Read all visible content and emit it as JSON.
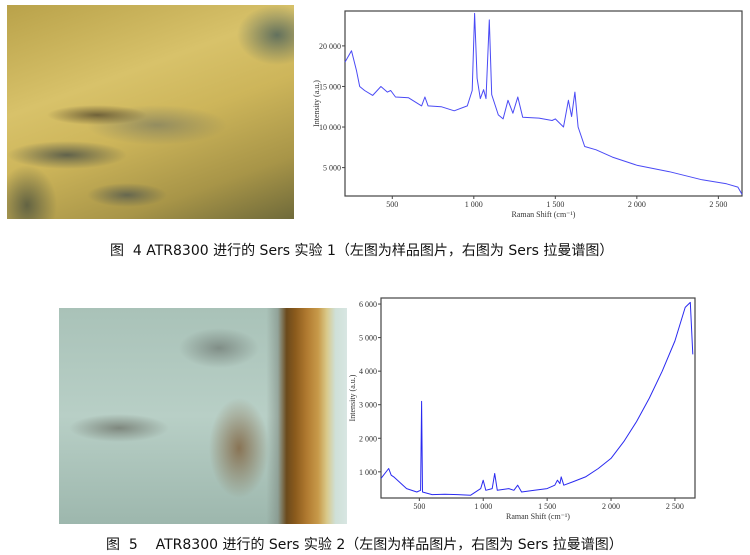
{
  "figures": [
    {
      "caption": "图  4 ATR8300 进行的 Sers 实验 1（左图为样品图片，右图为 Sers 拉曼谱图）",
      "image": "sample micrograph, yellow with dark streaks"
    },
    {
      "caption": "图  5    ATR8300 进行的 Sers 实验 2（左图为样品图片，右图为 Sers 拉曼谱图）",
      "image": "sample micrograph, pale blue-green with brown edge"
    }
  ],
  "chart_data": [
    {
      "type": "line",
      "xlabel": "Raman Shift (cm⁻¹)",
      "ylabel": "Intensity (a.u.)",
      "xlim": [
        210,
        2645
      ],
      "ylim": [
        1500,
        24300
      ],
      "xticks": [
        500,
        1000,
        1500,
        2000,
        2500
      ],
      "xtick_labels": [
        "500",
        "1 000",
        "1 500",
        "2 000",
        "2 500"
      ],
      "yticks": [
        5000,
        10000,
        15000,
        20000
      ],
      "ytick_labels": [
        "5 000",
        "10 000",
        "15 000",
        "20 000"
      ],
      "grid": false,
      "color": "#4a4af5",
      "points": [
        [
          210,
          18000
        ],
        [
          250,
          19400
        ],
        [
          280,
          17000
        ],
        [
          300,
          15000
        ],
        [
          330,
          14500
        ],
        [
          380,
          13900
        ],
        [
          430,
          15000
        ],
        [
          470,
          14300
        ],
        [
          490,
          14500
        ],
        [
          520,
          13700
        ],
        [
          600,
          13600
        ],
        [
          680,
          12600
        ],
        [
          700,
          13700
        ],
        [
          720,
          12600
        ],
        [
          800,
          12500
        ],
        [
          880,
          12000
        ],
        [
          960,
          12600
        ],
        [
          990,
          14500
        ],
        [
          1005,
          24000
        ],
        [
          1020,
          16000
        ],
        [
          1040,
          13500
        ],
        [
          1060,
          14600
        ],
        [
          1075,
          13500
        ],
        [
          1095,
          23200
        ],
        [
          1110,
          14000
        ],
        [
          1150,
          11500
        ],
        [
          1180,
          11000
        ],
        [
          1210,
          13300
        ],
        [
          1240,
          11700
        ],
        [
          1270,
          13700
        ],
        [
          1300,
          11200
        ],
        [
          1400,
          11100
        ],
        [
          1480,
          10800
        ],
        [
          1500,
          11000
        ],
        [
          1550,
          10000
        ],
        [
          1580,
          13300
        ],
        [
          1600,
          11300
        ],
        [
          1620,
          14300
        ],
        [
          1640,
          10000
        ],
        [
          1680,
          7600
        ],
        [
          1750,
          7200
        ],
        [
          1850,
          6300
        ],
        [
          2000,
          5300
        ],
        [
          2200,
          4500
        ],
        [
          2400,
          3500
        ],
        [
          2550,
          3000
        ],
        [
          2620,
          2600
        ],
        [
          2645,
          1700
        ]
      ]
    },
    {
      "type": "line",
      "xlabel": "Raman Shift (cm⁻¹)",
      "ylabel": "Intensity (a.u.)",
      "xlim": [
        200,
        2657
      ],
      "ylim": [
        220,
        6180
      ],
      "xticks": [
        500,
        1000,
        1500,
        2000,
        2500
      ],
      "xtick_labels": [
        "500",
        "1 000",
        "1 500",
        "2 000",
        "2 500"
      ],
      "yticks": [
        1000,
        2000,
        3000,
        4000,
        5000,
        6000
      ],
      "ytick_labels": [
        "1 000",
        "2 000",
        "3 000",
        "4 000",
        "5 000",
        "6 000"
      ],
      "grid": false,
      "color": "#2a2af0",
      "points": [
        [
          200,
          800
        ],
        [
          260,
          1100
        ],
        [
          280,
          900
        ],
        [
          300,
          850
        ],
        [
          400,
          500
        ],
        [
          480,
          400
        ],
        [
          510,
          450
        ],
        [
          518,
          3100
        ],
        [
          525,
          400
        ],
        [
          600,
          320
        ],
        [
          700,
          330
        ],
        [
          800,
          320
        ],
        [
          900,
          300
        ],
        [
          980,
          500
        ],
        [
          1000,
          750
        ],
        [
          1020,
          450
        ],
        [
          1070,
          500
        ],
        [
          1090,
          950
        ],
        [
          1110,
          450
        ],
        [
          1200,
          500
        ],
        [
          1240,
          450
        ],
        [
          1270,
          600
        ],
        [
          1300,
          400
        ],
        [
          1400,
          450
        ],
        [
          1500,
          500
        ],
        [
          1560,
          600
        ],
        [
          1580,
          750
        ],
        [
          1600,
          650
        ],
        [
          1610,
          850
        ],
        [
          1630,
          600
        ],
        [
          1700,
          700
        ],
        [
          1800,
          850
        ],
        [
          1900,
          1100
        ],
        [
          2000,
          1400
        ],
        [
          2100,
          1900
        ],
        [
          2200,
          2500
        ],
        [
          2300,
          3200
        ],
        [
          2400,
          4000
        ],
        [
          2500,
          4900
        ],
        [
          2580,
          5900
        ],
        [
          2620,
          6050
        ],
        [
          2640,
          4500
        ]
      ]
    }
  ]
}
